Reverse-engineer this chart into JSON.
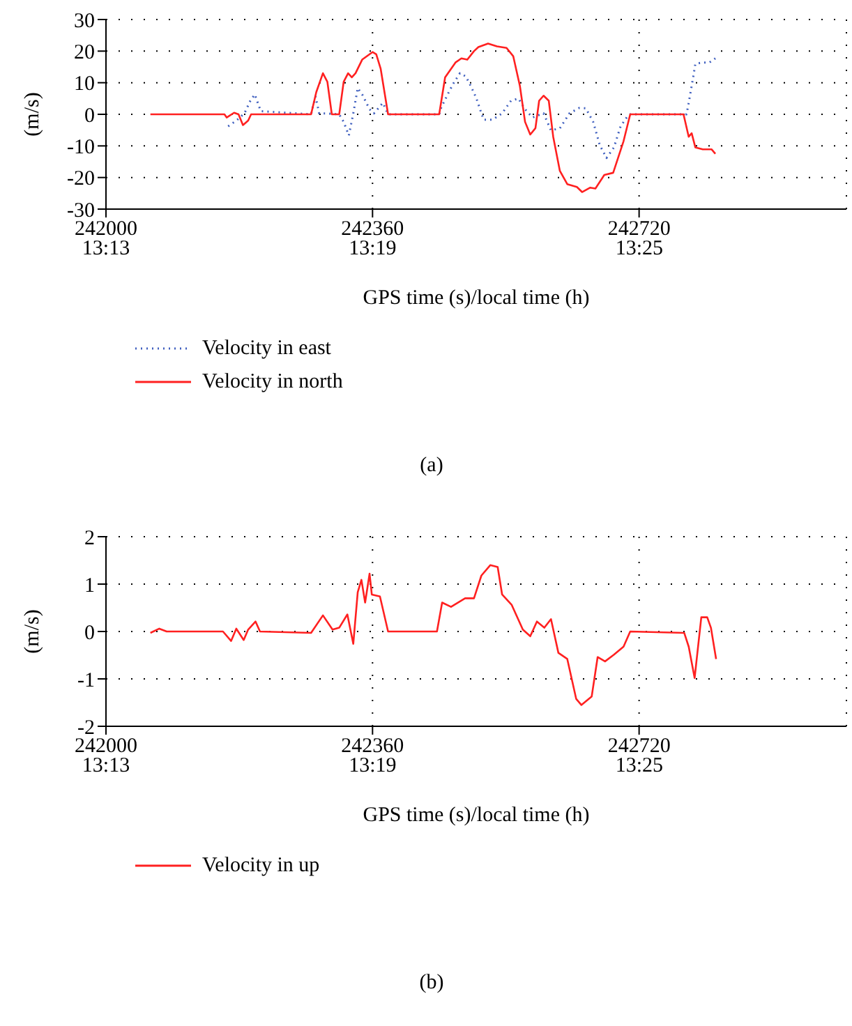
{
  "chart_data": [
    {
      "type": "line",
      "xlabel": "GPS time (s)/local time (h)",
      "ylabel": "(m/s)",
      "annotations": [
        "(a)"
      ],
      "xlim": [
        242000,
        243000
      ],
      "xticks": [
        242000,
        242360,
        242720
      ],
      "x2lim": [
        13.2167,
        13.4944
      ],
      "x2ticks": [
        {
          "value": 13.2167,
          "label": "13:13"
        },
        {
          "value": 13.3167,
          "label": "13:19"
        },
        {
          "value": 13.4167,
          "label": "13:25"
        }
      ],
      "ylim": [
        -30,
        30
      ],
      "yticks": [
        -30,
        -20,
        -10,
        0,
        10,
        20,
        30
      ],
      "grid": true,
      "legend": "bottom",
      "marker": "none",
      "series": [
        {
          "name": "Velocity in east",
          "color": "#3f5fbf",
          "line_style": "dotted",
          "x": [
            242165,
            242176,
            242187,
            242195,
            242201,
            242209,
            242277,
            242280,
            242283,
            242288,
            242296,
            242315,
            242321,
            242328,
            242334,
            242340,
            242346,
            242356,
            242362,
            242368,
            242374,
            242381,
            242450,
            242453,
            242463,
            242469,
            242478,
            242486,
            242494,
            242500,
            242510,
            242522,
            242535,
            242547,
            242557,
            242566,
            242576,
            242591,
            242601,
            242613,
            242626,
            242639,
            242648,
            242658,
            242667,
            242676,
            242686,
            242695,
            242705,
            242708,
            242784,
            242787,
            242793,
            242796,
            242806,
            242815,
            242823
          ],
          "values": [
            -3.8,
            -2,
            0.3,
            4.3,
            6.3,
            1,
            0,
            3,
            5.6,
            0.3,
            0.3,
            0,
            -2.4,
            -6.7,
            0.3,
            8.3,
            6.3,
            1.6,
            0.3,
            2,
            3.6,
            0,
            0,
            2.3,
            7,
            9.7,
            13,
            12,
            8.3,
            5.2,
            -1.7,
            -1.7,
            0.3,
            4.3,
            5,
            1.6,
            -1,
            0.3,
            -5.1,
            -4.4,
            0.3,
            2,
            1.9,
            -2.4,
            -9.8,
            -13.8,
            -10.5,
            -3.8,
            -0.4,
            0,
            0,
            3.6,
            11.7,
            16,
            16.4,
            16.4,
            17.7
          ]
        },
        {
          "name": "Velocity in north",
          "color": "#ff2020",
          "line_style": "solid",
          "x": [
            242060,
            242160,
            242163,
            242173,
            242179,
            242185,
            242192,
            242196,
            242277,
            242284,
            242293,
            242299,
            242305,
            242315,
            242321,
            242327,
            242332,
            242337,
            242346,
            242360,
            242365,
            242371,
            242381,
            242450,
            242458,
            242472,
            242480,
            242488,
            242497,
            242503,
            242516,
            242528,
            242541,
            242550,
            242559,
            242566,
            242573,
            242580,
            242585,
            242591,
            242598,
            242604,
            242613,
            242623,
            242636,
            242643,
            242654,
            242661,
            242673,
            242685,
            242699,
            242708,
            242780,
            242787,
            242791,
            242796,
            242806,
            242818,
            242823
          ],
          "values": [
            0,
            0,
            -1,
            0.5,
            0,
            -3.4,
            -2,
            0,
            0,
            7,
            13,
            10.3,
            0,
            0,
            10.3,
            13,
            11.7,
            13,
            17.3,
            19.7,
            19,
            14.4,
            0,
            0,
            11.7,
            16.4,
            17.7,
            17.3,
            20,
            21.3,
            22.4,
            21.5,
            21,
            18.4,
            9,
            -2.4,
            -6.4,
            -4.4,
            4.3,
            5.9,
            4.3,
            -7.1,
            -17.9,
            -22.1,
            -23,
            -24.6,
            -23.2,
            -23.5,
            -19.2,
            -18.5,
            -8.5,
            0,
            0,
            -7.1,
            -6,
            -10.5,
            -11.1,
            -11.1,
            -12.5
          ]
        }
      ]
    },
    {
      "type": "line",
      "xlabel": "GPS time (s)/local time (h)",
      "ylabel": "(m/s)",
      "annotations": [
        "(b)"
      ],
      "xlim": [
        242000,
        243000
      ],
      "xticks": [
        242000,
        242360,
        242720
      ],
      "x2lim": [
        13.2167,
        13.4944
      ],
      "x2ticks": [
        {
          "value": 13.2167,
          "label": "13:13"
        },
        {
          "value": 13.3167,
          "label": "13:19"
        },
        {
          "value": 13.4167,
          "label": "13:25"
        }
      ],
      "ylim": [
        -2,
        2
      ],
      "yticks": [
        -2,
        -1,
        0,
        1,
        2
      ],
      "grid": true,
      "legend": "bottom",
      "marker": "none",
      "series": [
        {
          "name": "Velocity in up",
          "color": "#ff2020",
          "line_style": "solid",
          "x": [
            242060,
            242072,
            242082,
            242158,
            242169,
            242176,
            242186,
            242192,
            242202,
            242208,
            242277,
            242293,
            242306,
            242315,
            242326,
            242334,
            242340,
            242345,
            242350,
            242356,
            242359,
            242370,
            242381,
            242447,
            242454,
            242466,
            242485,
            242497,
            242507,
            242519,
            242529,
            242535,
            242548,
            242563,
            242573,
            242582,
            242592,
            242601,
            242611,
            242623,
            242635,
            242642,
            242656,
            242664,
            242674,
            242686,
            242699,
            242708,
            242781,
            242787,
            242795,
            242804,
            242812,
            242817,
            242824
          ],
          "values": [
            -0.03,
            0.06,
            0,
            0,
            -0.2,
            0.06,
            -0.18,
            0.04,
            0.21,
            0,
            -0.03,
            0.34,
            0.04,
            0.08,
            0.36,
            -0.26,
            0.83,
            1.09,
            0.61,
            1.22,
            0.78,
            0.74,
            0,
            0,
            0.61,
            0.52,
            0.7,
            0.7,
            1.18,
            1.4,
            1.36,
            0.78,
            0.56,
            0.04,
            -0.1,
            0.21,
            0.08,
            0.26,
            -0.45,
            -0.58,
            -1.42,
            -1.55,
            -1.37,
            -0.54,
            -0.63,
            -0.49,
            -0.32,
            0,
            -0.03,
            -0.32,
            -0.98,
            0.3,
            0.3,
            0.08,
            -0.58
          ]
        }
      ]
    }
  ]
}
